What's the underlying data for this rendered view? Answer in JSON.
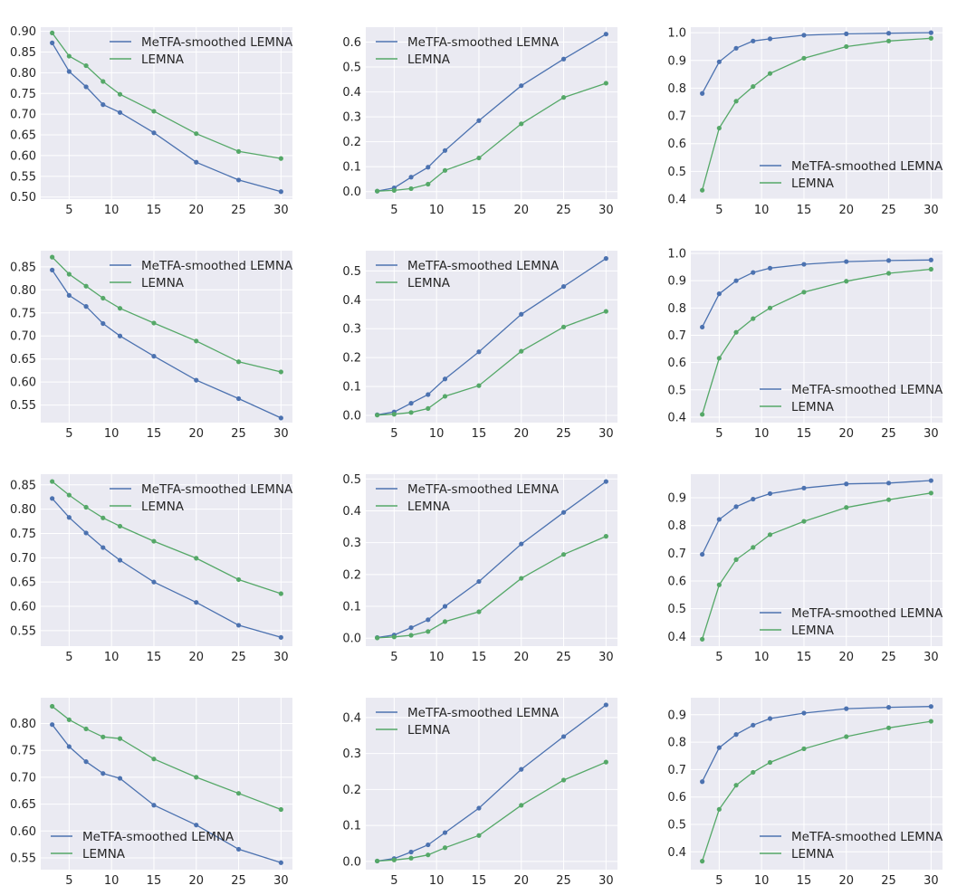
{
  "colors": {
    "metfa": "#4c72b0",
    "lemna": "#55a868",
    "background": "#eaeaf2",
    "grid": "#ffffff"
  },
  "chart_data": [
    {
      "type": "line",
      "title": "",
      "xlabel": "",
      "ylabel": "",
      "grid": true,
      "legend": "upper-right",
      "x": [
        3,
        5,
        7,
        9,
        11,
        15,
        20,
        25,
        30
      ],
      "ylim": [
        0.495,
        0.91
      ],
      "yticks": [
        "0.50",
        "0.55",
        "0.60",
        "0.65",
        "0.70",
        "0.75",
        "0.80",
        "0.85",
        "0.90"
      ],
      "xticks": [
        "5",
        "10",
        "15",
        "20",
        "25",
        "30"
      ],
      "series": [
        {
          "name": "MeTFA-smoothed LEMNA",
          "values": [
            0.872,
            0.803,
            0.766,
            0.723,
            0.704,
            0.655,
            0.584,
            0.541,
            0.513
          ]
        },
        {
          "name": "LEMNA",
          "values": [
            0.896,
            0.84,
            0.817,
            0.779,
            0.748,
            0.707,
            0.653,
            0.61,
            0.593
          ]
        }
      ]
    },
    {
      "type": "line",
      "title": "",
      "xlabel": "",
      "ylabel": "",
      "grid": true,
      "legend": "upper-left",
      "x": [
        3,
        5,
        7,
        9,
        11,
        15,
        20,
        25,
        30
      ],
      "ylim": [
        -0.03,
        0.66
      ],
      "yticks": [
        "0.0",
        "0.1",
        "0.2",
        "0.3",
        "0.4",
        "0.5",
        "0.6"
      ],
      "xticks": [
        "5",
        "10",
        "15",
        "20",
        "25",
        "30"
      ],
      "series": [
        {
          "name": "MeTFA-smoothed LEMNA",
          "values": [
            0.002,
            0.015,
            0.058,
            0.098,
            0.165,
            0.285,
            0.425,
            0.532,
            0.632
          ]
        },
        {
          "name": "LEMNA",
          "values": [
            0.002,
            0.005,
            0.012,
            0.03,
            0.085,
            0.135,
            0.272,
            0.378,
            0.435
          ]
        }
      ]
    },
    {
      "type": "line",
      "title": "",
      "xlabel": "",
      "ylabel": "",
      "grid": true,
      "legend": "lower-right",
      "x": [
        3,
        5,
        7,
        9,
        11,
        15,
        20,
        25,
        30
      ],
      "ylim": [
        0.4,
        1.02
      ],
      "yticks": [
        "0.4",
        "0.5",
        "0.6",
        "0.7",
        "0.8",
        "0.9",
        "1.0"
      ],
      "xticks": [
        "5",
        "10",
        "15",
        "20",
        "25",
        "30"
      ],
      "series": [
        {
          "name": "MeTFA-smoothed LEMNA",
          "values": [
            0.781,
            0.895,
            0.944,
            0.97,
            0.978,
            0.991,
            0.996,
            0.998,
            1.0
          ]
        },
        {
          "name": "LEMNA",
          "values": [
            0.432,
            0.656,
            0.753,
            0.806,
            0.853,
            0.908,
            0.95,
            0.97,
            0.98
          ]
        }
      ]
    },
    {
      "type": "line",
      "title": "",
      "xlabel": "",
      "ylabel": "",
      "grid": true,
      "legend": "upper-right",
      "x": [
        3,
        5,
        7,
        9,
        11,
        15,
        20,
        25,
        30
      ],
      "ylim": [
        0.512,
        0.885
      ],
      "yticks": [
        "0.55",
        "0.60",
        "0.65",
        "0.70",
        "0.75",
        "0.80",
        "0.85"
      ],
      "xticks": [
        "5",
        "10",
        "15",
        "20",
        "25",
        "30"
      ],
      "series": [
        {
          "name": "MeTFA-smoothed LEMNA",
          "values": [
            0.843,
            0.788,
            0.764,
            0.727,
            0.7,
            0.656,
            0.604,
            0.564,
            0.522
          ]
        },
        {
          "name": "LEMNA",
          "values": [
            0.871,
            0.834,
            0.808,
            0.782,
            0.76,
            0.728,
            0.689,
            0.644,
            0.622
          ]
        }
      ]
    },
    {
      "type": "line",
      "title": "",
      "xlabel": "",
      "ylabel": "",
      "grid": true,
      "legend": "upper-left",
      "x": [
        3,
        5,
        7,
        9,
        11,
        15,
        20,
        25,
        30
      ],
      "ylim": [
        -0.025,
        0.57
      ],
      "yticks": [
        "0.0",
        "0.1",
        "0.2",
        "0.3",
        "0.4",
        "0.5"
      ],
      "xticks": [
        "5",
        "10",
        "15",
        "20",
        "25",
        "30"
      ],
      "series": [
        {
          "name": "MeTFA-smoothed LEMNA",
          "values": [
            0.002,
            0.012,
            0.042,
            0.072,
            0.126,
            0.22,
            0.35,
            0.446,
            0.543
          ]
        },
        {
          "name": "LEMNA",
          "values": [
            0.001,
            0.004,
            0.01,
            0.024,
            0.066,
            0.103,
            0.222,
            0.306,
            0.36
          ]
        }
      ]
    },
    {
      "type": "line",
      "title": "",
      "xlabel": "",
      "ylabel": "",
      "grid": true,
      "legend": "lower-right",
      "x": [
        3,
        5,
        7,
        9,
        11,
        15,
        20,
        25,
        30
      ],
      "ylim": [
        0.38,
        1.01
      ],
      "yticks": [
        "0.4",
        "0.5",
        "0.6",
        "0.7",
        "0.8",
        "0.9",
        "1.0"
      ],
      "xticks": [
        "5",
        "10",
        "15",
        "20",
        "25",
        "30"
      ],
      "series": [
        {
          "name": "MeTFA-smoothed LEMNA",
          "values": [
            0.73,
            0.852,
            0.9,
            0.93,
            0.946,
            0.96,
            0.97,
            0.974,
            0.976
          ]
        },
        {
          "name": "LEMNA",
          "values": [
            0.41,
            0.616,
            0.711,
            0.761,
            0.8,
            0.858,
            0.898,
            0.927,
            0.942
          ]
        }
      ]
    },
    {
      "type": "line",
      "title": "",
      "xlabel": "",
      "ylabel": "",
      "grid": true,
      "legend": "upper-right",
      "x": [
        3,
        5,
        7,
        9,
        11,
        15,
        20,
        25,
        30
      ],
      "ylim": [
        0.518,
        0.872
      ],
      "yticks": [
        "0.55",
        "0.60",
        "0.65",
        "0.70",
        "0.75",
        "0.80",
        "0.85"
      ],
      "xticks": [
        "5",
        "10",
        "15",
        "20",
        "25",
        "30"
      ],
      "series": [
        {
          "name": "MeTFA-smoothed LEMNA",
          "values": [
            0.822,
            0.783,
            0.751,
            0.721,
            0.695,
            0.65,
            0.608,
            0.561,
            0.536
          ]
        },
        {
          "name": "LEMNA",
          "values": [
            0.857,
            0.829,
            0.804,
            0.782,
            0.765,
            0.734,
            0.699,
            0.655,
            0.626
          ]
        }
      ]
    },
    {
      "type": "line",
      "title": "",
      "xlabel": "",
      "ylabel": "",
      "grid": true,
      "legend": "upper-left",
      "x": [
        3,
        5,
        7,
        9,
        11,
        15,
        20,
        25,
        30
      ],
      "ylim": [
        -0.025,
        0.515
      ],
      "yticks": [
        "0.0",
        "0.1",
        "0.2",
        "0.3",
        "0.4",
        "0.5"
      ],
      "xticks": [
        "5",
        "10",
        "15",
        "20",
        "25",
        "30"
      ],
      "series": [
        {
          "name": "MeTFA-smoothed LEMNA",
          "values": [
            0.002,
            0.01,
            0.033,
            0.058,
            0.1,
            0.178,
            0.296,
            0.395,
            0.492
          ]
        },
        {
          "name": "LEMNA",
          "values": [
            0.001,
            0.004,
            0.009,
            0.021,
            0.052,
            0.083,
            0.188,
            0.263,
            0.32
          ]
        }
      ]
    },
    {
      "type": "line",
      "title": "",
      "xlabel": "",
      "ylabel": "",
      "grid": true,
      "legend": "lower-right",
      "x": [
        3,
        5,
        7,
        9,
        11,
        15,
        20,
        25,
        30
      ],
      "ylim": [
        0.365,
        0.985
      ],
      "yticks": [
        "0.4",
        "0.5",
        "0.6",
        "0.7",
        "0.8",
        "0.9"
      ],
      "xticks": [
        "5",
        "10",
        "15",
        "20",
        "25",
        "30"
      ],
      "series": [
        {
          "name": "MeTFA-smoothed LEMNA",
          "values": [
            0.696,
            0.822,
            0.868,
            0.895,
            0.915,
            0.935,
            0.95,
            0.953,
            0.962
          ]
        },
        {
          "name": "LEMNA",
          "values": [
            0.39,
            0.586,
            0.677,
            0.721,
            0.767,
            0.815,
            0.865,
            0.893,
            0.917
          ]
        }
      ]
    },
    {
      "type": "line",
      "title": "",
      "xlabel": "",
      "ylabel": "",
      "grid": true,
      "legend": "lower-left",
      "x": [
        3,
        5,
        7,
        9,
        11,
        15,
        20,
        25,
        30
      ],
      "ylim": [
        0.528,
        0.848
      ],
      "yticks": [
        "0.55",
        "0.60",
        "0.65",
        "0.70",
        "0.75",
        "0.80"
      ],
      "xticks": [
        "5",
        "10",
        "15",
        "20",
        "25",
        "30"
      ],
      "series": [
        {
          "name": "MeTFA-smoothed LEMNA",
          "values": [
            0.798,
            0.757,
            0.729,
            0.707,
            0.698,
            0.648,
            0.611,
            0.566,
            0.541
          ]
        },
        {
          "name": "LEMNA",
          "values": [
            0.832,
            0.807,
            0.79,
            0.775,
            0.772,
            0.734,
            0.7,
            0.67,
            0.64
          ]
        }
      ]
    },
    {
      "type": "line",
      "title": "",
      "xlabel": "",
      "ylabel": "",
      "grid": true,
      "legend": "upper-left",
      "x": [
        3,
        5,
        7,
        9,
        11,
        15,
        20,
        25,
        30
      ],
      "ylim": [
        -0.023,
        0.455
      ],
      "yticks": [
        "0.0",
        "0.1",
        "0.2",
        "0.3",
        "0.4"
      ],
      "xticks": [
        "5",
        "10",
        "15",
        "20",
        "25",
        "30"
      ],
      "series": [
        {
          "name": "MeTFA-smoothed LEMNA",
          "values": [
            0.001,
            0.008,
            0.026,
            0.046,
            0.08,
            0.148,
            0.256,
            0.347,
            0.435
          ]
        },
        {
          "name": "LEMNA",
          "values": [
            0.001,
            0.004,
            0.009,
            0.018,
            0.038,
            0.072,
            0.156,
            0.226,
            0.276
          ]
        }
      ]
    },
    {
      "type": "line",
      "title": "",
      "xlabel": "",
      "ylabel": "",
      "grid": true,
      "legend": "lower-right",
      "x": [
        3,
        5,
        7,
        9,
        11,
        15,
        20,
        25,
        30
      ],
      "ylim": [
        0.335,
        0.962
      ],
      "yticks": [
        "0.4",
        "0.5",
        "0.6",
        "0.7",
        "0.8",
        "0.9"
      ],
      "xticks": [
        "5",
        "10",
        "15",
        "20",
        "25",
        "30"
      ],
      "series": [
        {
          "name": "MeTFA-smoothed LEMNA",
          "values": [
            0.656,
            0.78,
            0.828,
            0.862,
            0.886,
            0.906,
            0.922,
            0.927,
            0.93
          ]
        },
        {
          "name": "LEMNA",
          "values": [
            0.366,
            0.555,
            0.643,
            0.69,
            0.726,
            0.776,
            0.82,
            0.852,
            0.876
          ]
        }
      ]
    }
  ]
}
